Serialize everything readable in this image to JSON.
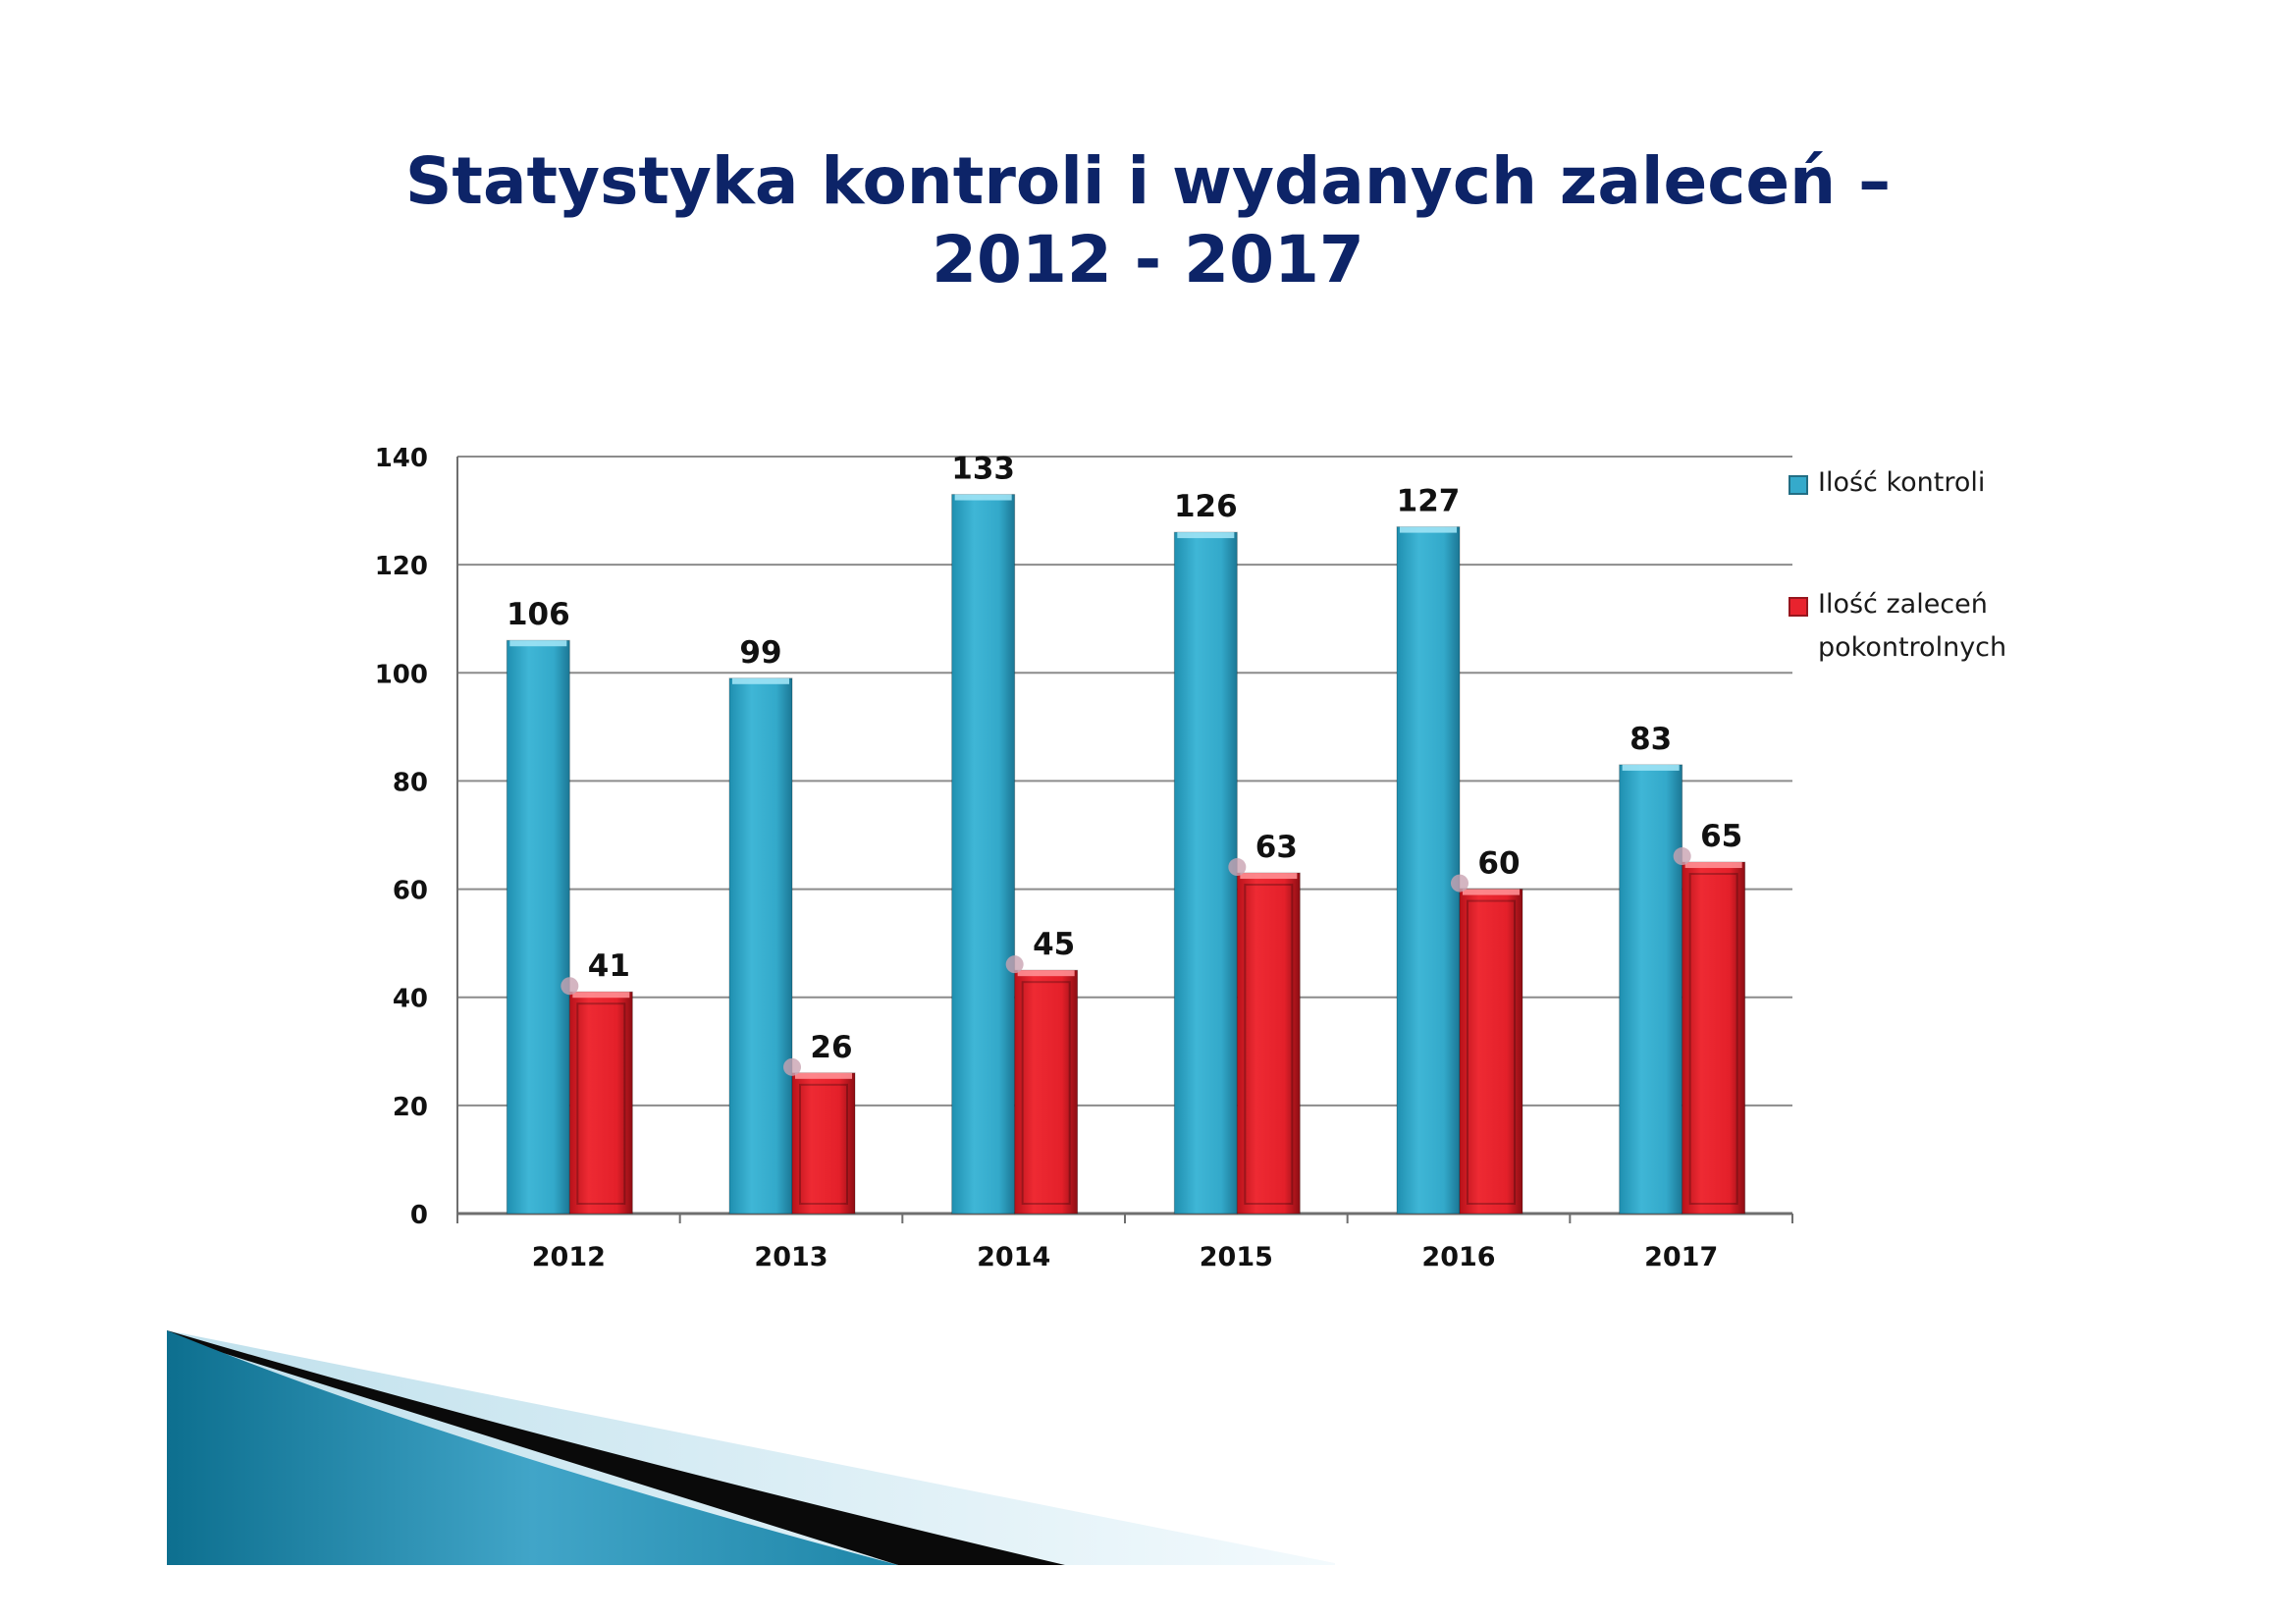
{
  "title": {
    "line1": "Statystyka kontroli i wydanych zaleceń –",
    "line2": "2012 - 2017"
  },
  "colors": {
    "title": "#0d2468",
    "series_kontroli": "#35aacb",
    "series_zalecen": "#e8232e",
    "grid": "#8c8c8c"
  },
  "chart_data": {
    "type": "bar",
    "categories": [
      "2012",
      "2013",
      "2014",
      "2015",
      "2016",
      "2017"
    ],
    "series": [
      {
        "name": "Ilość kontroli",
        "values": [
          106,
          99,
          133,
          126,
          127,
          83
        ],
        "color": "#35aacb"
      },
      {
        "name": "Ilość zaleceń pokontrolnych",
        "values": [
          41,
          26,
          45,
          63,
          60,
          65
        ],
        "color": "#e8232e"
      }
    ],
    "y_ticks": [
      "0",
      "20",
      "40",
      "60",
      "80",
      "100",
      "120",
      "140"
    ],
    "ylim": [
      0,
      140
    ],
    "grid": true,
    "legend_position": "right",
    "data_labels": true,
    "title": "",
    "xlabel": "",
    "ylabel": ""
  }
}
